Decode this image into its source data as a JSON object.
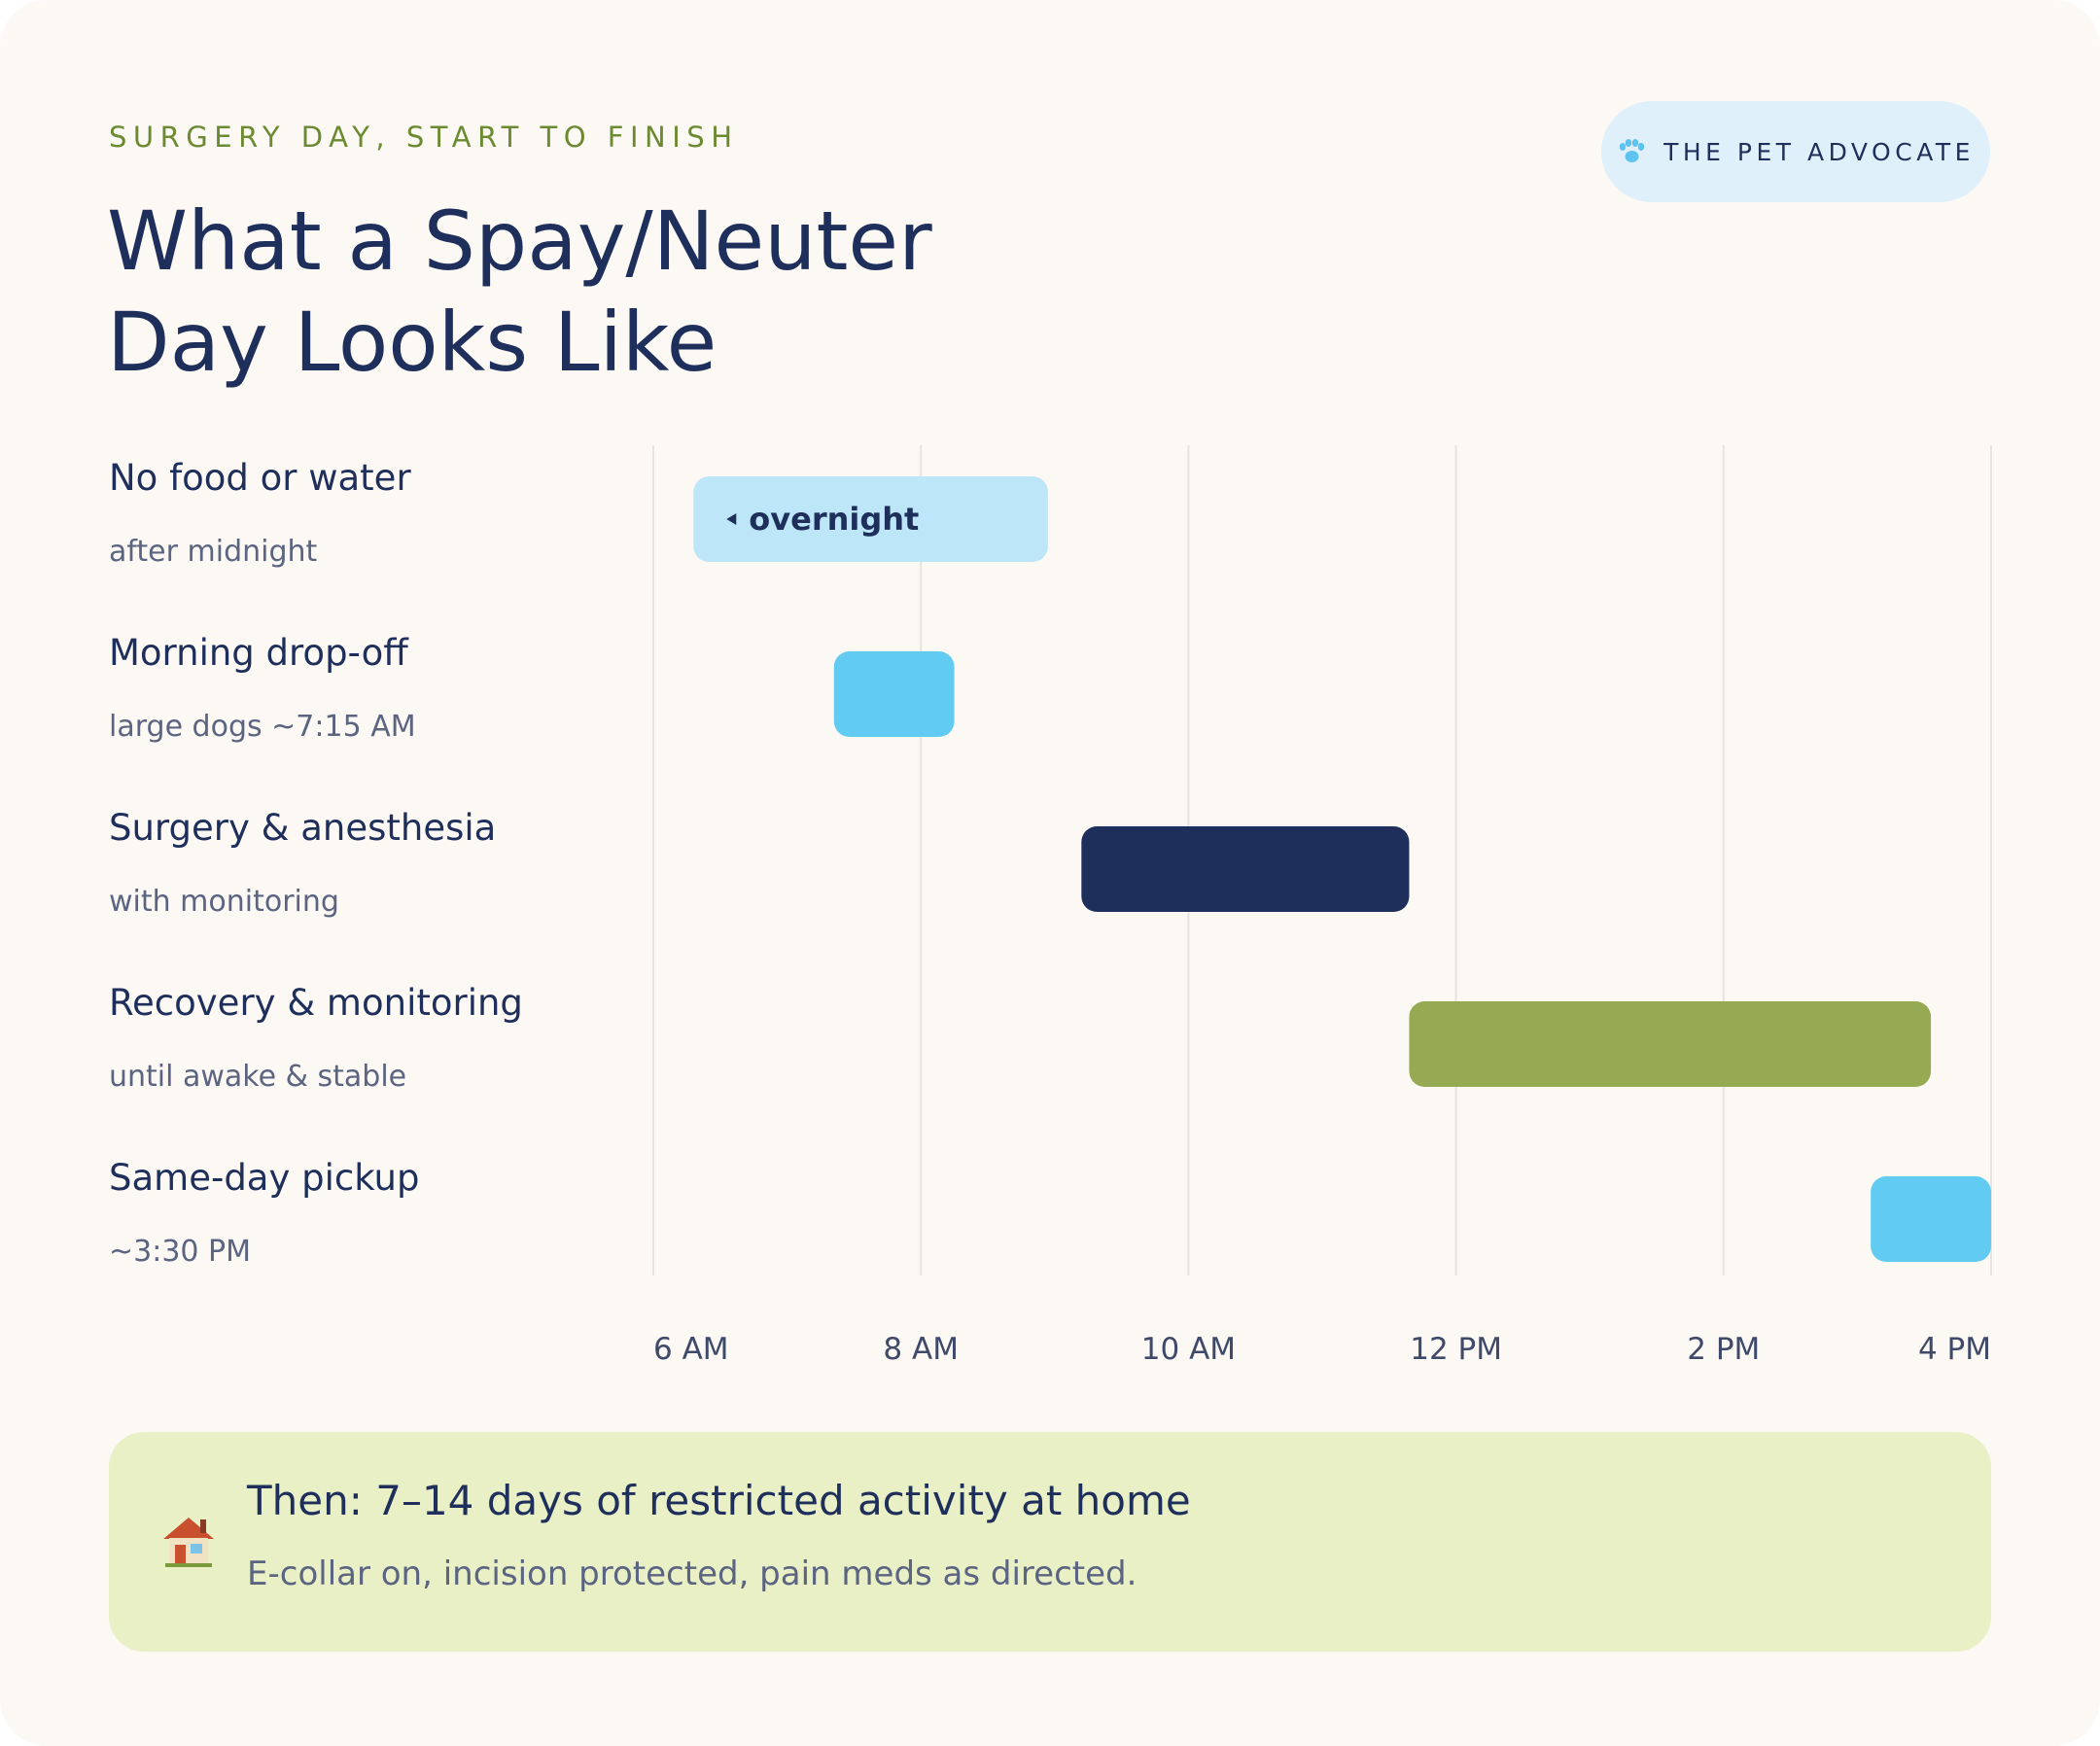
{
  "header": {
    "eyebrow": "SURGERY DAY, START TO FINISH",
    "title": "What a Spay/Neuter\nDay Looks Like",
    "brand": "THE PET ADVOCATE",
    "brand_icon": "paw-icon"
  },
  "chart_data": {
    "type": "gantt",
    "title": "What a Spay/Neuter Day Looks Like",
    "x_ticks": [
      "6 AM",
      "8 AM",
      "10 AM",
      "12 PM",
      "2 PM",
      "4 PM"
    ],
    "x_range_hours": [
      6,
      16
    ],
    "grid": true,
    "rows": [
      {
        "label": "No food or water",
        "sub": "after midnight",
        "start": 6.3,
        "end": 8.95,
        "color": "#bde6f8",
        "bar_label": "overnight",
        "arrow": "left"
      },
      {
        "label": "Morning drop-off",
        "sub": "large dogs ~7:15 AM",
        "start": 7.35,
        "end": 8.25,
        "color": "#62cbf1",
        "bar_label": ""
      },
      {
        "label": "Surgery & anesthesia",
        "sub": "with monitoring",
        "start": 9.2,
        "end": 11.65,
        "color": "#1f2f5b",
        "bar_label": ""
      },
      {
        "label": "Recovery & monitoring",
        "sub": "until awake & stable",
        "start": 11.65,
        "end": 15.55,
        "color": "#95aa52",
        "bar_label": ""
      },
      {
        "label": "Same-day pickup",
        "sub": "~3:30 PM",
        "start": 15.1,
        "end": 16.0,
        "color": "#62cbf1",
        "bar_label": ""
      }
    ]
  },
  "callout": {
    "icon": "house-icon",
    "title": "Then: 7–14 days of restricted activity at home",
    "text": "E-collar on, incision protected, pain meds as directed."
  }
}
